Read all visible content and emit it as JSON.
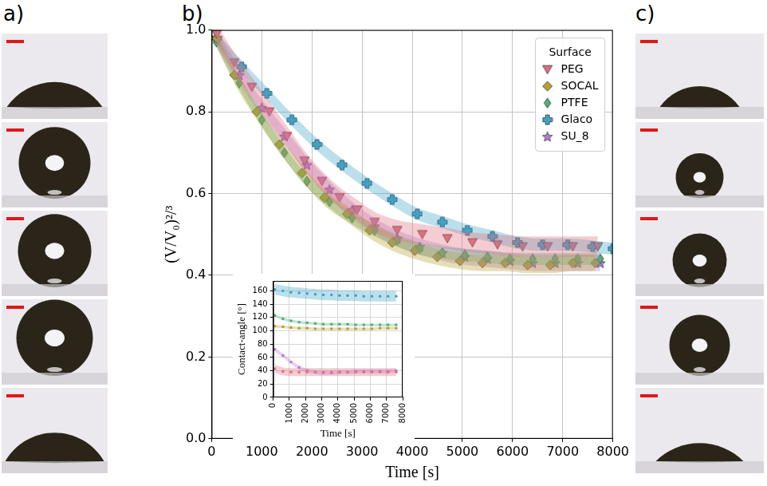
{
  "chart_data": [
    {
      "type": "scatter",
      "panel": "b)",
      "x_label": "Time [s]",
      "y_label": "(V/V₀)²/³",
      "xlim": [
        0,
        8000
      ],
      "xticks": [
        0,
        1000,
        2000,
        3000,
        4000,
        5000,
        6000,
        7000,
        8000
      ],
      "ylim": [
        0,
        1
      ],
      "yticks": [
        {
          "value": 0,
          "label": "0.0"
        },
        {
          "value": 0.2,
          "label": "0.2"
        },
        {
          "value": 0.4,
          "label": "0.4"
        },
        {
          "value": 0.6,
          "label": "0.6"
        },
        {
          "value": 0.8,
          "label": "0.8"
        },
        {
          "value": 1,
          "label": "1.0"
        }
      ],
      "grid": true,
      "legend": "upper right",
      "legend_title": "Surface",
      "series": [
        {
          "name": "PEG",
          "color": "#e0707f",
          "marker": "triangle_down",
          "x": [
            100,
            450,
            800,
            1150,
            1500,
            1850,
            2200,
            2550,
            2900,
            3250,
            3700,
            4200,
            4700,
            5200,
            5700,
            6200,
            6700,
            7200,
            7700
          ],
          "values": [
            0.99,
            0.92,
            0.86,
            0.8,
            0.74,
            0.68,
            0.63,
            0.59,
            0.56,
            0.53,
            0.51,
            0.5,
            0.49,
            0.48,
            0.475,
            0.47,
            0.47,
            0.47,
            0.47
          ],
          "error": 0.025
        },
        {
          "name": "SOCAL",
          "color": "#b8a030",
          "marker": "diamond",
          "x": [
            100,
            450,
            900,
            1350,
            1800,
            2250,
            2700,
            3150,
            3600,
            4050,
            4500,
            4950,
            5400,
            5850,
            6300,
            6750,
            7200,
            7650
          ],
          "values": [
            0.98,
            0.89,
            0.8,
            0.72,
            0.65,
            0.59,
            0.55,
            0.51,
            0.48,
            0.46,
            0.445,
            0.435,
            0.43,
            0.43,
            0.425,
            0.425,
            0.43,
            0.43
          ],
          "error": 0.02
        },
        {
          "name": "PTFE",
          "color": "#4fb07d",
          "marker": "thin_diamond",
          "x": [
            100,
            550,
            1000,
            1450,
            1900,
            2350,
            2800,
            3250,
            3700,
            4150,
            4600,
            5050,
            5500,
            5950,
            6400,
            6850,
            7300,
            7750
          ],
          "values": [
            0.97,
            0.87,
            0.78,
            0.7,
            0.63,
            0.58,
            0.54,
            0.51,
            0.485,
            0.465,
            0.455,
            0.45,
            0.445,
            0.44,
            0.44,
            0.44,
            0.44,
            0.44
          ],
          "error": 0.015
        },
        {
          "name": "Glaco",
          "color": "#3fa3c8",
          "marker": "plus_filled",
          "x": [
            100,
            600,
            1100,
            1600,
            2100,
            2600,
            3100,
            3600,
            4100,
            4600,
            5100,
            5600,
            6100,
            6600,
            7100,
            7600,
            8000
          ],
          "values": [
            0.98,
            0.91,
            0.845,
            0.78,
            0.72,
            0.67,
            0.625,
            0.585,
            0.55,
            0.53,
            0.51,
            0.495,
            0.48,
            0.475,
            0.475,
            0.47,
            0.465
          ],
          "error": 0.015
        },
        {
          "name": "SU_8",
          "color": "#b97ad6",
          "marker": "star",
          "x": [
            100,
            550,
            1000,
            1450,
            1900,
            2350,
            2800,
            3250,
            3700,
            4150,
            4600,
            5050,
            5500,
            5950,
            6400,
            6850,
            7300,
            7750
          ],
          "values": [
            0.98,
            0.89,
            0.81,
            0.74,
            0.67,
            0.61,
            0.56,
            0.52,
            0.49,
            0.47,
            0.455,
            0.445,
            0.44,
            0.435,
            0.43,
            0.43,
            0.43,
            0.43
          ],
          "error": 0.02
        }
      ]
    },
    {
      "type": "scatter",
      "x_label": "Time [s]",
      "y_label": "Contact-angle [°]",
      "xlim": [
        0,
        8000
      ],
      "xticks": [
        0,
        1000,
        2000,
        3000,
        4000,
        5000,
        6000,
        7000,
        8000
      ],
      "ylim": [
        0,
        175
      ],
      "yticks": [
        0,
        20,
        40,
        60,
        80,
        100,
        120,
        140,
        160
      ],
      "grid": true,
      "series": [
        {
          "name": "PEG",
          "color": "#e0707f",
          "marker": "point",
          "x": [
            100,
            600,
            1100,
            1600,
            2100,
            2600,
            3100,
            3600,
            4100,
            4600,
            5100,
            5600,
            6100,
            6600,
            7100,
            7600
          ],
          "values": [
            43,
            39,
            38,
            38,
            38,
            38,
            38,
            38,
            38,
            38,
            38,
            38,
            38,
            38,
            38,
            38
          ],
          "error": 6
        },
        {
          "name": "SOCAL",
          "color": "#b8a030",
          "marker": "point",
          "x": [
            100,
            600,
            1100,
            1600,
            2100,
            2600,
            3100,
            3600,
            4100,
            4600,
            5100,
            5600,
            6100,
            6600,
            7100,
            7600
          ],
          "values": [
            107,
            106,
            105,
            104,
            104,
            103,
            103,
            103,
            103,
            103,
            103,
            103,
            103,
            104,
            104,
            104
          ],
          "error": 2
        },
        {
          "name": "PTFE",
          "color": "#4fb07d",
          "marker": "point",
          "x": [
            100,
            600,
            1100,
            1600,
            2100,
            2600,
            3100,
            3600,
            4100,
            4600,
            5100,
            5600,
            6100,
            6600,
            7100,
            7600
          ],
          "values": [
            123,
            118,
            115,
            113,
            112,
            111,
            110,
            110,
            110,
            110,
            109,
            109,
            109,
            109,
            109,
            109
          ],
          "error": 2
        },
        {
          "name": "Glaco",
          "color": "#3fa3c8",
          "marker": "point",
          "x": [
            100,
            600,
            1100,
            1600,
            2100,
            2600,
            3100,
            3600,
            4100,
            4600,
            5100,
            5600,
            6100,
            6600,
            7100,
            7600
          ],
          "values": [
            162,
            160,
            158,
            157,
            156,
            155,
            154,
            154,
            153,
            153,
            153,
            152,
            152,
            152,
            152,
            152
          ],
          "error": 8
        },
        {
          "name": "SU_8",
          "color": "#b97ad6",
          "marker": "point",
          "x": [
            100,
            600,
            1100,
            1600,
            2100,
            2600,
            3100,
            3600,
            4100,
            4600,
            5100,
            5600,
            6100,
            6600,
            7100,
            7600
          ],
          "values": [
            72,
            63,
            53,
            45,
            40,
            38,
            37,
            37,
            38,
            38,
            39,
            39,
            39,
            39,
            39,
            40
          ],
          "error": 3
        }
      ]
    }
  ],
  "photo_panels": [
    {
      "label": "a)"
    },
    {
      "label": "c)"
    }
  ]
}
